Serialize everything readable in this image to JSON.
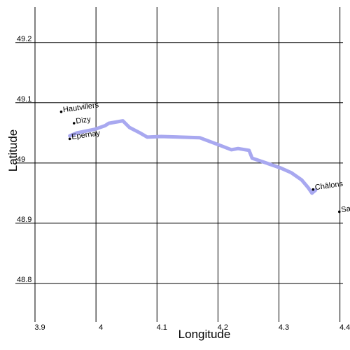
{
  "chart_data": {
    "type": "line",
    "x_label": "Longitude",
    "y_label": "Latitude",
    "x": [
      3.957,
      3.969,
      3.998,
      4.015,
      4.021,
      4.044,
      4.055,
      4.072,
      4.084,
      4.107,
      4.17,
      4.199,
      4.222,
      4.233,
      4.251,
      4.256,
      4.279,
      4.302,
      4.32,
      4.337,
      4.348,
      4.354,
      4.36
    ],
    "values": [
      49.045,
      49.05,
      49.056,
      49.062,
      49.066,
      49.07,
      49.059,
      49.05,
      49.043,
      49.044,
      49.042,
      49.031,
      49.022,
      49.024,
      49.021,
      49.008,
      49.0,
      48.992,
      48.984,
      48.972,
      48.959,
      48.95,
      48.955
    ],
    "color": "#a8a8f0",
    "points": [
      {
        "label": "Hautvillers",
        "x": 3.943,
        "y": 49.085
      },
      {
        "label": "Dizy",
        "x": 3.964,
        "y": 49.066
      },
      {
        "label": "Epernay",
        "x": 3.957,
        "y": 49.04
      },
      {
        "label": "Châlons",
        "x": 4.356,
        "y": 48.956
      },
      {
        "label": "Sa",
        "x": 4.399,
        "y": 48.919
      }
    ],
    "xlim": [
      3.9,
      4.405
    ],
    "ylim": [
      48.736,
      49.259
    ],
    "xticks": [
      3.9,
      4,
      4.1,
      4.2,
      4.3,
      4.4
    ],
    "yticks": [
      48.8,
      48.9,
      49,
      49.1,
      49.2
    ],
    "grid": true
  }
}
